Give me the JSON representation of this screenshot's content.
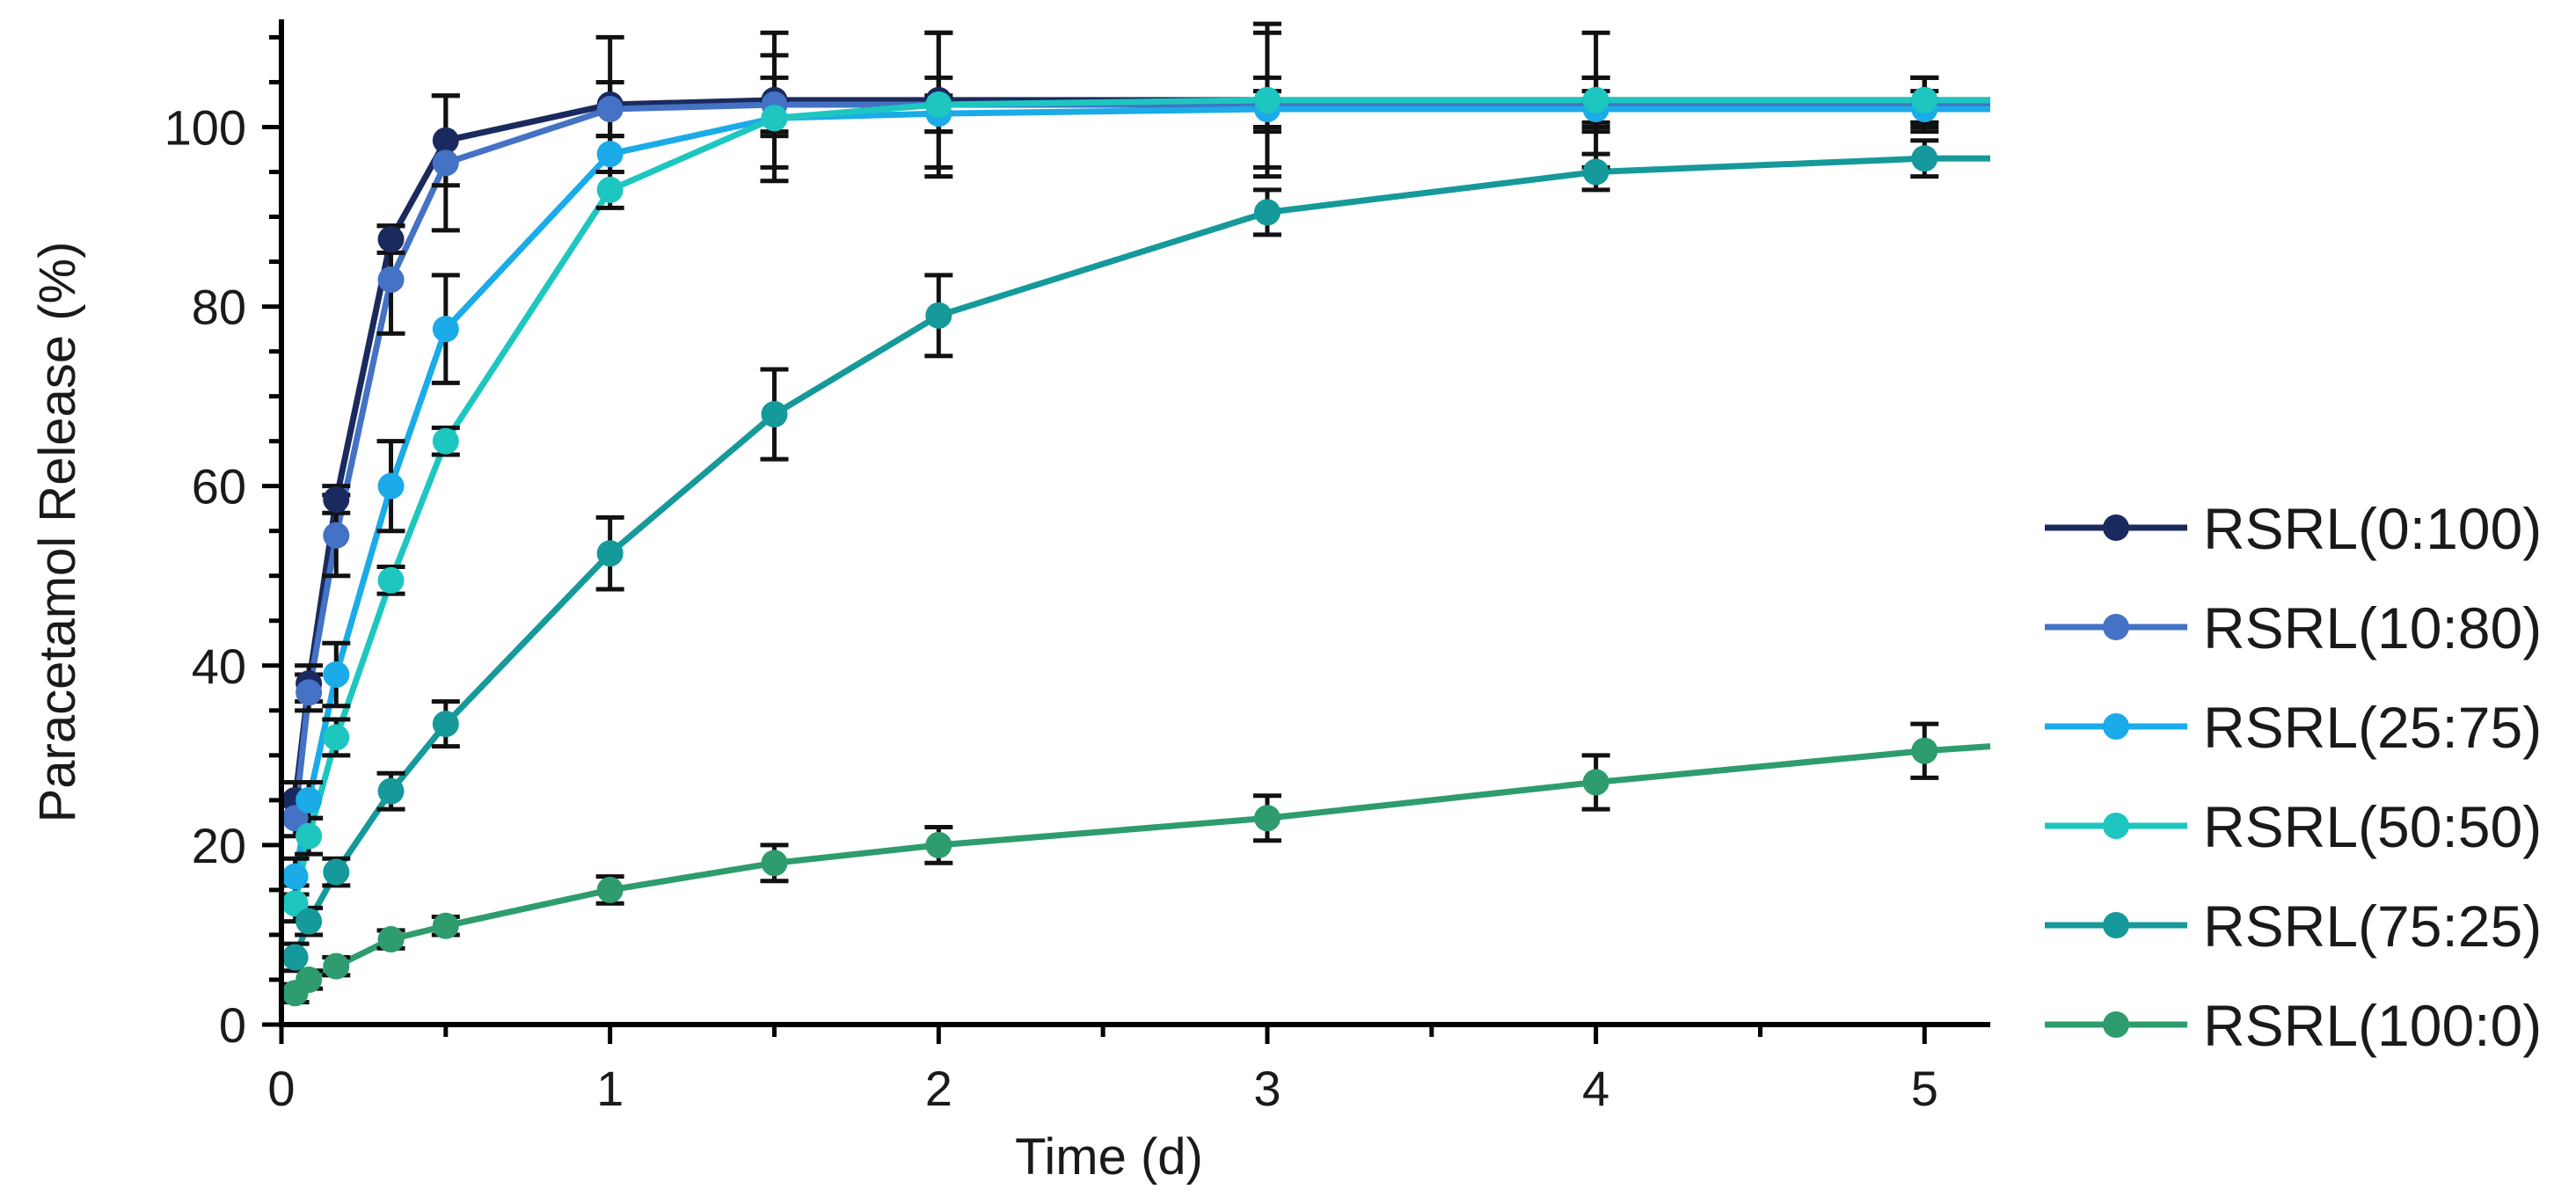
{
  "chart_data": {
    "type": "line",
    "title": "",
    "xlabel": "Time (d)",
    "ylabel": "Paracetamol Release (%)",
    "xlim": [
      0,
      5.2
    ],
    "ylim": [
      0,
      112
    ],
    "xticks": [
      0,
      1,
      2,
      3,
      4,
      5
    ],
    "xtick_labels": [
      "0",
      "1",
      "2",
      "3",
      "4",
      "5"
    ],
    "yticks": [
      0,
      20,
      40,
      60,
      80,
      100
    ],
    "ytick_labels": [
      "0",
      "20",
      "40",
      "60",
      "80",
      "100"
    ],
    "x_minor_step": 0.5,
    "y_minor_step": 5,
    "grid": false,
    "legend_position": "right",
    "series": [
      {
        "name": "RSRL(0:100)",
        "color": "#1b2a5e",
        "x": [
          0.0417,
          0.0833,
          0.1667,
          0.3333,
          0.5,
          1,
          1.5,
          2,
          3,
          4,
          5
        ],
        "values": [
          25,
          38,
          58.5,
          87.5,
          98.5,
          102.5,
          103,
          103,
          103,
          103,
          103
        ],
        "errors": [
          2,
          2,
          1.5,
          1.5,
          5,
          7.5,
          7.5,
          7.5,
          7.5,
          7.5,
          2.5
        ],
        "extend_to": 103
      },
      {
        "name": "RSRL(10:80)",
        "color": "#4472c4",
        "x": [
          0.0417,
          0.0833,
          0.1667,
          0.3333,
          0.5,
          1,
          1.5,
          2,
          3,
          4,
          5
        ],
        "values": [
          23,
          37,
          54.5,
          83,
          96,
          102,
          102.5,
          102.5,
          102.5,
          102.5,
          102.5
        ],
        "errors": [
          2,
          2,
          4.5,
          6,
          7.5,
          3,
          3,
          3,
          3,
          3,
          3
        ],
        "extend_to": 102.5
      },
      {
        "name": "RSRL(25:75)",
        "color": "#1aabe8",
        "x": [
          0.0417,
          0.0833,
          0.1667,
          0.3333,
          0.5,
          1,
          1.5,
          2,
          3,
          4,
          5
        ],
        "values": [
          16.5,
          25,
          39,
          60,
          77.5,
          97,
          101,
          101.5,
          102,
          102,
          102
        ],
        "errors": [
          2,
          2,
          3.5,
          5,
          6,
          2,
          2,
          2,
          2,
          2,
          2
        ],
        "extend_to": 102
      },
      {
        "name": "RSRL(50:50)",
        "color": "#1ec6c0",
        "x": [
          0.0417,
          0.0833,
          0.1667,
          0.3333,
          0.5,
          1,
          1.5,
          2,
          3,
          4,
          5
        ],
        "values": [
          13.5,
          21,
          32,
          49.5,
          65,
          93,
          101,
          102.5,
          103,
          103,
          103
        ],
        "errors": [
          2,
          2,
          2,
          1.5,
          1.5,
          2,
          7,
          8,
          8.5,
          2.5,
          2.5
        ],
        "extend_to": 103
      },
      {
        "name": "RSRL(75:25)",
        "color": "#16999a",
        "x": [
          0.0417,
          0.0833,
          0.1667,
          0.3333,
          0.5,
          1,
          1.5,
          2,
          3,
          4,
          5
        ],
        "values": [
          7.5,
          11.5,
          17,
          26,
          33.5,
          52.5,
          68,
          79,
          90.5,
          95,
          96.5
        ],
        "errors": [
          1.5,
          1.5,
          1.5,
          2,
          2.5,
          4,
          5,
          4.5,
          2.5,
          2,
          2
        ],
        "extend_to": 96.5
      },
      {
        "name": "RSRL(100:0)",
        "color": "#2e9c6e",
        "x": [
          0.0417,
          0.0833,
          0.1667,
          0.3333,
          0.5,
          1,
          1.5,
          2,
          3,
          4,
          5
        ],
        "values": [
          3.5,
          5,
          6.5,
          9.5,
          11,
          15,
          18,
          20,
          23,
          27,
          30.5
        ],
        "errors": [
          1,
          1,
          1,
          1,
          1,
          1.5,
          2,
          2,
          2.5,
          3,
          3
        ],
        "extend_to": 31
      }
    ]
  }
}
